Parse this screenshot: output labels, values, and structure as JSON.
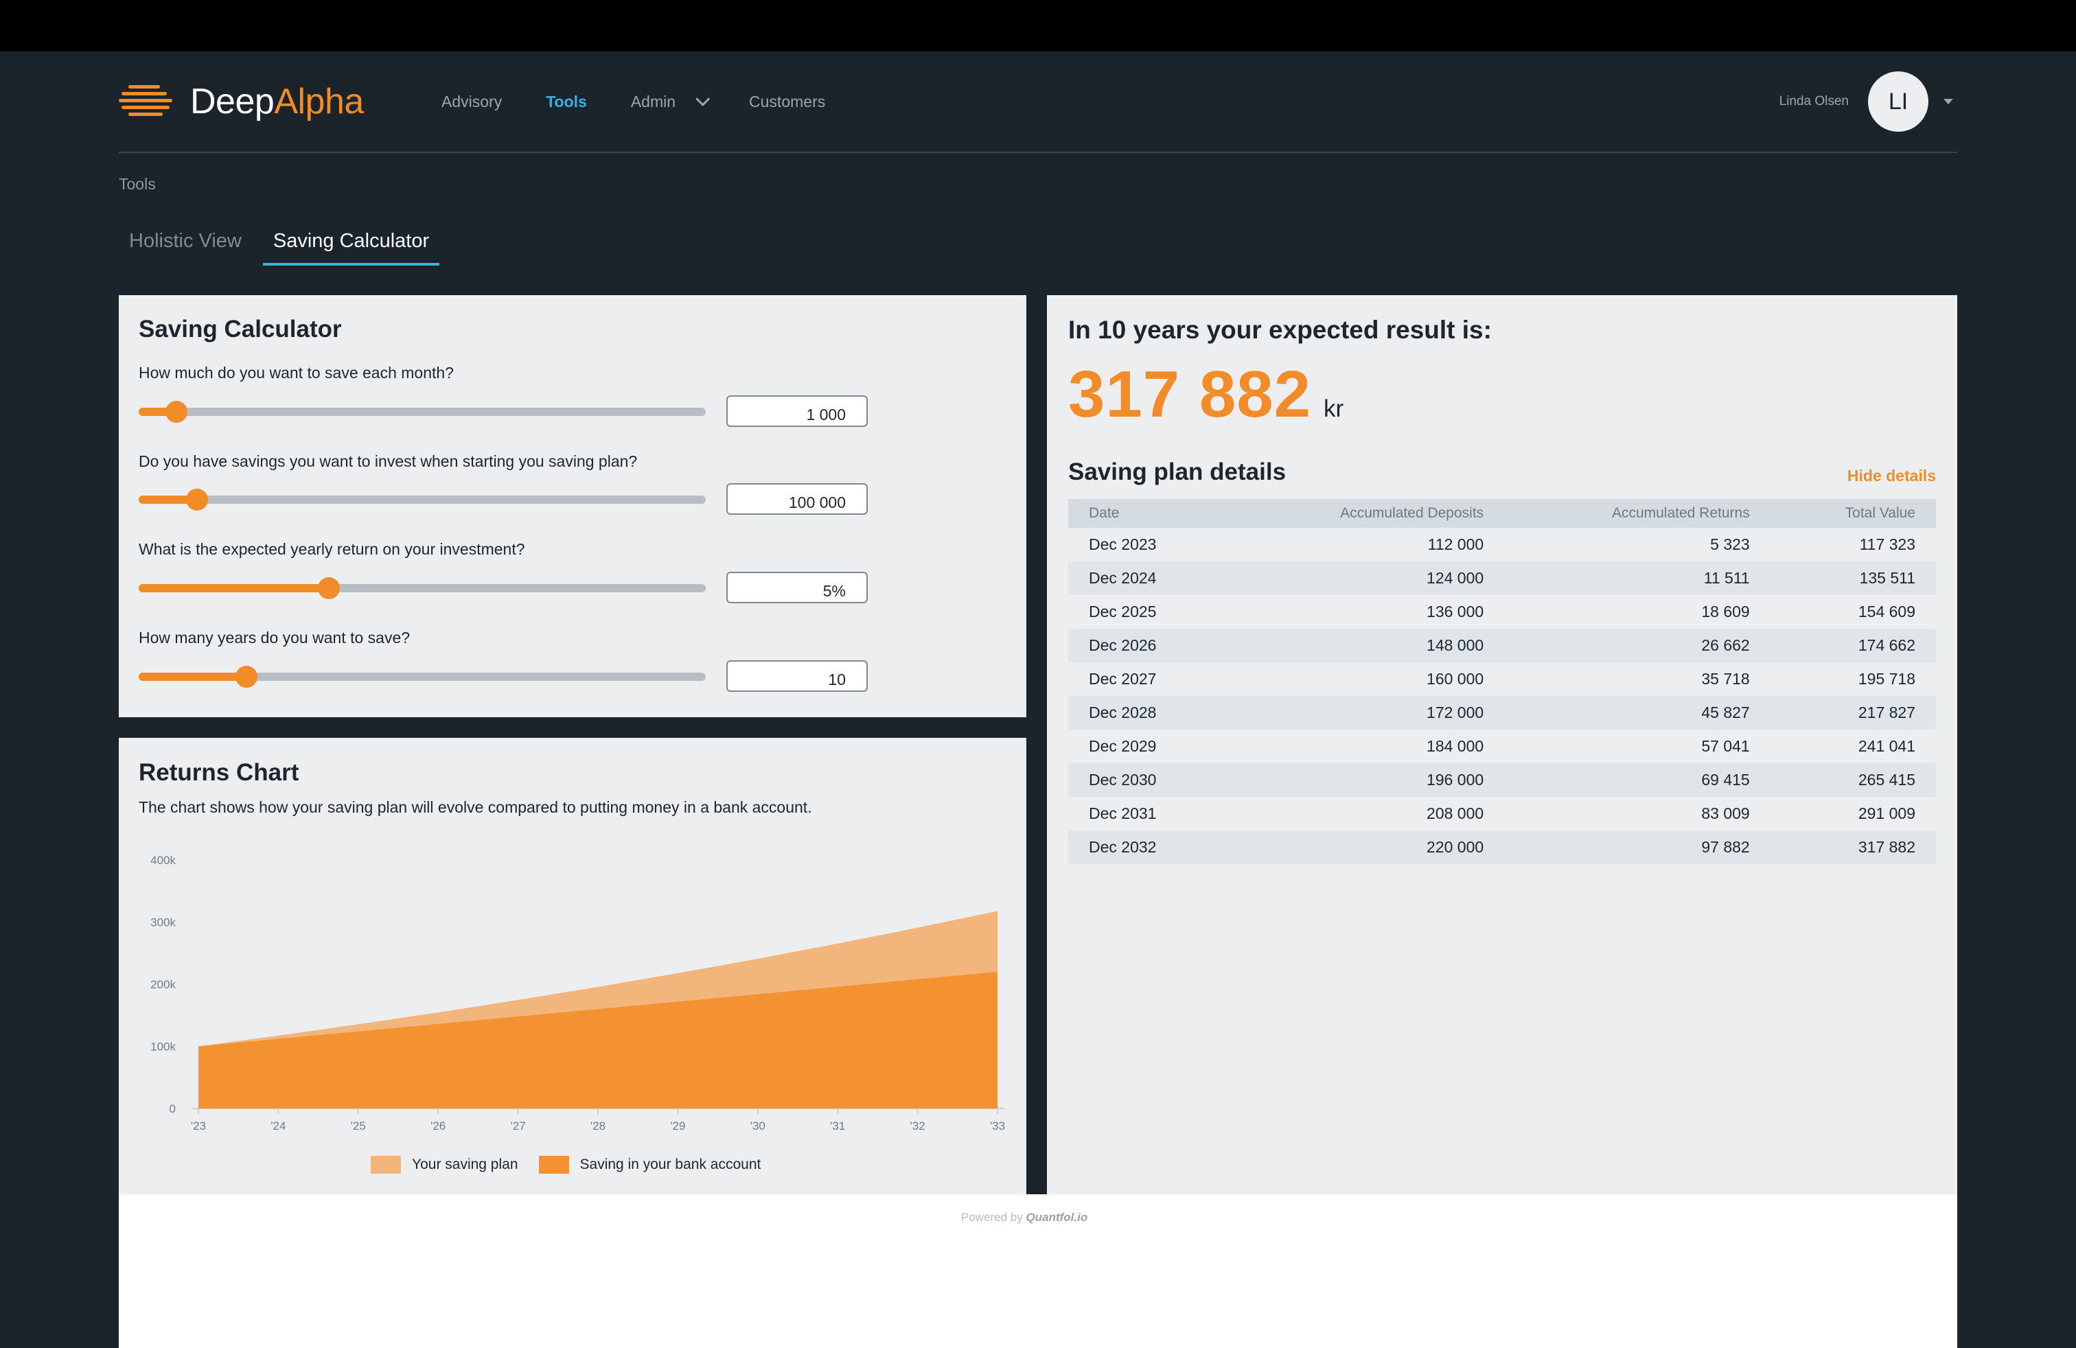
{
  "app": {
    "logo_part1": "Deep",
    "logo_part2": "Alpha"
  },
  "nav": {
    "advisory": "Advisory",
    "tools": "Tools",
    "admin": "Admin",
    "customers": "Customers"
  },
  "user": {
    "name": "Linda Olsen",
    "initials": "LI"
  },
  "breadcrumb": "Tools",
  "tabs": {
    "holistic": "Holistic View",
    "saving": "Saving Calculator"
  },
  "calculator": {
    "title": "Saving Calculator",
    "q1": "How much do you want to save each month?",
    "v1": "1 000",
    "s1": 0.067,
    "q2": "Do you have savings you want to invest when starting you saving plan?",
    "v2": "100 000",
    "s2": 0.103,
    "q3": "What is the expected yearly return on your investment?",
    "v3": "5%",
    "s3": 0.335,
    "q4": "How many years do you want to save?",
    "v4": "10",
    "s4": 0.19
  },
  "returns": {
    "title": "Returns Chart",
    "description": "The chart shows how your saving plan will evolve compared to putting money in a bank account.",
    "legend": {
      "plan": "Your saving plan",
      "bank": "Saving in your bank account"
    }
  },
  "chart_data": {
    "type": "area",
    "x": [
      "'23",
      "'24",
      "'25",
      "'26",
      "'27",
      "'28",
      "'29",
      "'30",
      "'31",
      "'32",
      "'33"
    ],
    "yticks": [
      "0",
      "100k",
      "200k",
      "300k",
      "400k"
    ],
    "ylim": [
      0,
      400000
    ],
    "series": [
      {
        "name": "Your saving plan",
        "color": "#f2b67d",
        "values": [
          100000,
          117323,
          135511,
          154609,
          174662,
          195718,
          217827,
          241041,
          265415,
          291009,
          317882
        ]
      },
      {
        "name": "Saving in your bank account",
        "color": "#f49130",
        "values": [
          100000,
          112000,
          124000,
          136000,
          148000,
          160000,
          172000,
          184000,
          196000,
          208000,
          220000
        ]
      }
    ],
    "legend_position": "bottom"
  },
  "result": {
    "title": "In 10 years your expected result is:",
    "value": "317 882",
    "currency": "kr"
  },
  "details": {
    "title": "Saving plan details",
    "hide": "Hide details",
    "headers": [
      "Date",
      "Accumulated Deposits",
      "Accumulated Returns",
      "Total Value"
    ],
    "rows": [
      [
        "Dec 2023",
        "112 000",
        "5 323",
        "117 323"
      ],
      [
        "Dec 2024",
        "124 000",
        "11 511",
        "135 511"
      ],
      [
        "Dec 2025",
        "136 000",
        "18 609",
        "154 609"
      ],
      [
        "Dec 2026",
        "148 000",
        "26 662",
        "174 662"
      ],
      [
        "Dec 2027",
        "160 000",
        "35 718",
        "195 718"
      ],
      [
        "Dec 2028",
        "172 000",
        "45 827",
        "217 827"
      ],
      [
        "Dec 2029",
        "184 000",
        "57 041",
        "241 041"
      ],
      [
        "Dec 2030",
        "196 000",
        "69 415",
        "265 415"
      ],
      [
        "Dec 2031",
        "208 000",
        "83 009",
        "291 009"
      ],
      [
        "Dec 2032",
        "220 000",
        "97 882",
        "317 882"
      ]
    ]
  },
  "footer": {
    "powered": "Powered by",
    "brand": "Quantfol.io"
  },
  "colors": {
    "accent": "#f28c28",
    "link": "#2fb5e8"
  }
}
